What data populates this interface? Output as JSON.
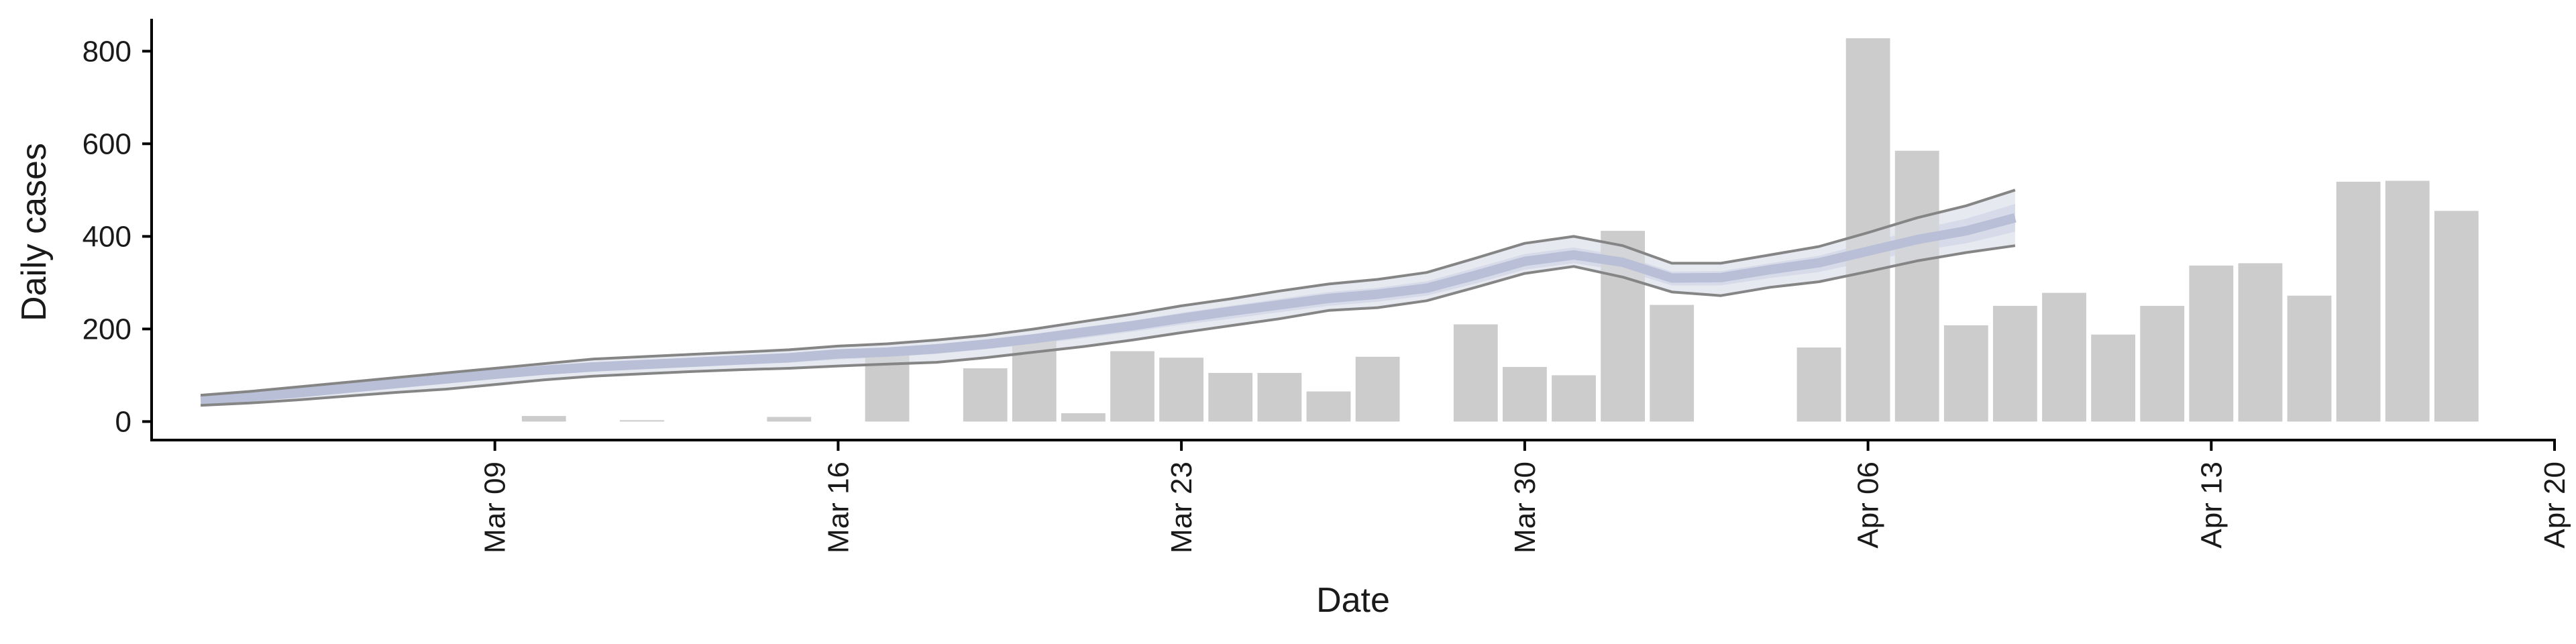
{
  "chart_data": {
    "type": "bar",
    "xlabel": "Date",
    "ylabel": "Daily cases",
    "ylim": [
      -40,
      870
    ],
    "yticks": [
      0,
      200,
      400,
      600,
      800
    ],
    "x_ticks": [
      {
        "date": "2020-03-09",
        "label": "Mar 09"
      },
      {
        "date": "2020-03-16",
        "label": "Mar 16"
      },
      {
        "date": "2020-03-23",
        "label": "Mar 23"
      },
      {
        "date": "2020-03-30",
        "label": "Mar 30"
      },
      {
        "date": "2020-04-06",
        "label": "Apr 06"
      },
      {
        "date": "2020-04-13",
        "label": "Apr 13"
      },
      {
        "date": "2020-04-20",
        "label": "Apr 20"
      }
    ],
    "xlim": [
      "2020-03-02",
      "2020-04-20"
    ],
    "grid": false,
    "bars": {
      "color": "#cccccc",
      "dates": [
        "2020-03-10",
        "2020-03-12",
        "2020-03-15",
        "2020-03-17",
        "2020-03-19",
        "2020-03-20",
        "2020-03-21",
        "2020-03-22",
        "2020-03-23",
        "2020-03-24",
        "2020-03-25",
        "2020-03-26",
        "2020-03-27",
        "2020-03-29",
        "2020-03-30",
        "2020-03-31",
        "2020-04-01",
        "2020-04-02",
        "2020-04-05",
        "2020-04-06",
        "2020-04-07",
        "2020-04-08",
        "2020-04-09",
        "2020-04-10",
        "2020-04-11",
        "2020-04-12",
        "2020-04-13",
        "2020-04-14",
        "2020-04-15",
        "2020-04-16",
        "2020-04-17",
        "2020-04-18"
      ],
      "values": [
        12,
        3,
        10,
        155,
        115,
        175,
        18,
        152,
        138,
        105,
        105,
        65,
        140,
        210,
        118,
        100,
        412,
        252,
        160,
        828,
        585,
        208,
        250,
        278,
        188,
        250,
        337,
        342,
        272,
        518,
        520,
        455
      ]
    },
    "lines": {
      "dates": [
        "2020-03-03",
        "2020-03-04",
        "2020-03-05",
        "2020-03-06",
        "2020-03-07",
        "2020-03-08",
        "2020-03-09",
        "2020-03-10",
        "2020-03-11",
        "2020-03-12",
        "2020-03-13",
        "2020-03-14",
        "2020-03-15",
        "2020-03-16",
        "2020-03-17",
        "2020-03-18",
        "2020-03-19",
        "2020-03-20",
        "2020-03-21",
        "2020-03-22",
        "2020-03-23",
        "2020-03-24",
        "2020-03-25",
        "2020-03-26",
        "2020-03-27",
        "2020-03-28",
        "2020-03-29",
        "2020-03-30",
        "2020-03-31",
        "2020-04-01",
        "2020-04-02",
        "2020-04-03",
        "2020-04-04",
        "2020-04-05",
        "2020-04-06",
        "2020-04-07",
        "2020-04-08",
        "2020-04-09"
      ],
      "upper": [
        57,
        65,
        75,
        85,
        95,
        105,
        115,
        125,
        135,
        140,
        145,
        150,
        155,
        163,
        168,
        176,
        186,
        200,
        216,
        232,
        250,
        265,
        282,
        297,
        307,
        322,
        353,
        385,
        400,
        380,
        342,
        342,
        360,
        378,
        408,
        440,
        466,
        500
      ],
      "upper_mid": [
        51,
        58,
        68,
        78,
        88,
        98,
        108,
        118,
        126,
        131,
        136,
        141,
        146,
        154,
        159,
        166,
        176,
        189,
        204,
        218,
        235,
        250,
        265,
        280,
        289,
        303,
        332,
        362,
        376,
        358,
        324,
        325,
        342,
        358,
        386,
        415,
        438,
        470
      ],
      "mid": [
        47,
        53,
        62,
        72,
        82,
        92,
        102,
        111,
        118,
        123,
        128,
        133,
        138,
        146,
        150,
        157,
        167,
        179,
        193,
        207,
        223,
        238,
        252,
        266,
        275,
        288,
        316,
        346,
        360,
        344,
        310,
        311,
        328,
        343,
        368,
        393,
        412,
        440
      ],
      "lower_mid": [
        42,
        48,
        56,
        65,
        74,
        83,
        93,
        101,
        108,
        113,
        118,
        123,
        127,
        134,
        139,
        146,
        156,
        167,
        180,
        194,
        209,
        222,
        236,
        250,
        259,
        272,
        298,
        328,
        342,
        326,
        294,
        294,
        310,
        323,
        346,
        368,
        385,
        410
      ],
      "lower": [
        35,
        40,
        47,
        55,
        63,
        70,
        80,
        90,
        98,
        103,
        108,
        112,
        115,
        120,
        124,
        128,
        138,
        150,
        162,
        176,
        192,
        207,
        222,
        240,
        246,
        261,
        290,
        320,
        335,
        312,
        280,
        272,
        290,
        302,
        324,
        347,
        365,
        380
      ],
      "band_outer_color": "#e3e6ef",
      "band_inner_color": "#c7cde0",
      "edge_color": "#858585",
      "center_color": "#b8bfd6"
    }
  }
}
